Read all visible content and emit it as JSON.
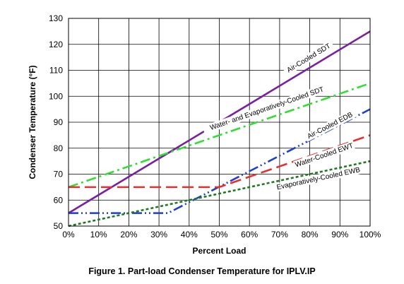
{
  "chart_data": {
    "type": "line",
    "caption": "Figure 1.  Part-load Condenser Temperature for IPLV.IP",
    "xlabel": "Percent Load",
    "ylabel": "Condenser Temperature (°F)",
    "xlim": [
      0,
      100
    ],
    "ylim": [
      50,
      130
    ],
    "x_ticks": [
      0,
      10,
      20,
      30,
      40,
      50,
      60,
      70,
      80,
      90,
      100
    ],
    "x_tick_labels": [
      "0%",
      "10%",
      "20%",
      "30%",
      "40%",
      "50%",
      "60%",
      "70%",
      "80%",
      "90%",
      "100%"
    ],
    "y_ticks": [
      50,
      60,
      70,
      80,
      90,
      100,
      110,
      120,
      130
    ],
    "y_tick_labels": [
      "50",
      "60",
      "70",
      "80",
      "90",
      "100",
      "110",
      "120",
      "130"
    ],
    "grid": true,
    "legend": "none",
    "series": [
      {
        "name": "Air-Cooled SDT",
        "color": "#7b1fa2",
        "style": "solid",
        "points": [
          [
            0,
            55
          ],
          [
            100,
            125
          ]
        ],
        "label_at": [
          80,
          114
        ]
      },
      {
        "name": "Water- and Evaporatively-Cooled SDT",
        "color": "#33dd33",
        "style": "dashdot",
        "points": [
          [
            0,
            65
          ],
          [
            100,
            105
          ]
        ],
        "label_at": [
          66,
          94.5
        ]
      },
      {
        "name": "Air-Cooled EDB",
        "color": "#1f3fd0",
        "style": "dashdotdot",
        "points": [
          [
            0,
            55
          ],
          [
            33,
            55
          ],
          [
            100,
            95
          ]
        ],
        "label_at": [
          87,
          88
        ]
      },
      {
        "name": "Water-Cooled EWT",
        "color": "#e53030",
        "style": "dash",
        "points": [
          [
            0,
            65
          ],
          [
            50,
            65
          ],
          [
            100,
            85
          ]
        ],
        "label_at": [
          85,
          76.5
        ]
      },
      {
        "name": "Evaporatively-Cooled EWB",
        "color": "#207a20",
        "style": "dot",
        "points": [
          [
            0,
            50
          ],
          [
            100,
            75
          ]
        ],
        "label_at": [
          83,
          67.5
        ]
      }
    ]
  }
}
